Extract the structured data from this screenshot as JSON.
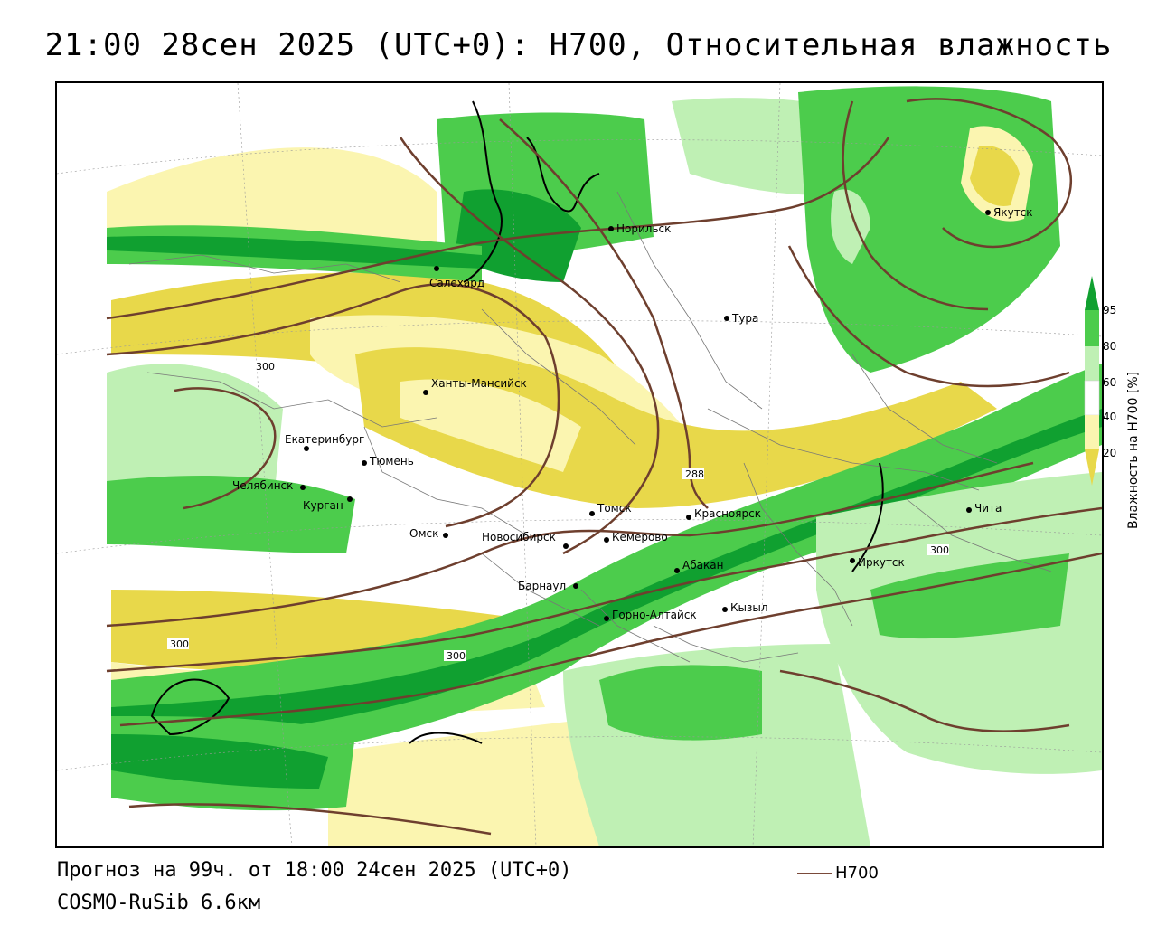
{
  "title": "21:00 28сен 2025 (UTC+0): H700, Относительная влажность",
  "footer": {
    "forecast": "Прогноз на 99ч. от 18:00 24сен 2025 (UTC+0)",
    "model": "COSMO-RuSib 6.6км"
  },
  "legend": {
    "line_label": "H700",
    "line_color": "#7a4a3a"
  },
  "colorbar": {
    "title": "Влажность на H700 [%]",
    "ticks": [
      "95",
      "80",
      "60",
      "40",
      "20"
    ],
    "colors": {
      "dark_green": "#10a030",
      "green": "#4ccc4c",
      "light_green": "#bff0b4",
      "white": "#ffffff",
      "light_yellow": "#fbf5b0",
      "yellow": "#e8d84a",
      "dark_yellow": "#d8c828"
    }
  },
  "contour_labels": [
    "300",
    "288",
    "300",
    "300",
    "300"
  ],
  "cities": [
    {
      "name": "Норильск"
    },
    {
      "name": "Якутск"
    },
    {
      "name": "Салехард"
    },
    {
      "name": "Тура"
    },
    {
      "name": "Ханты-Мансийск"
    },
    {
      "name": "Екатеринбург"
    },
    {
      "name": "Тюмень"
    },
    {
      "name": "Челябинск"
    },
    {
      "name": "Курган"
    },
    {
      "name": "Омск"
    },
    {
      "name": "Томск"
    },
    {
      "name": "Красноярск"
    },
    {
      "name": "Новосибирск"
    },
    {
      "name": "Кемерово"
    },
    {
      "name": "Абакан"
    },
    {
      "name": "Барнаул"
    },
    {
      "name": "Горно-Алтайск"
    },
    {
      "name": "Кызыл"
    },
    {
      "name": "Иркутск"
    },
    {
      "name": "Чита"
    }
  ]
}
